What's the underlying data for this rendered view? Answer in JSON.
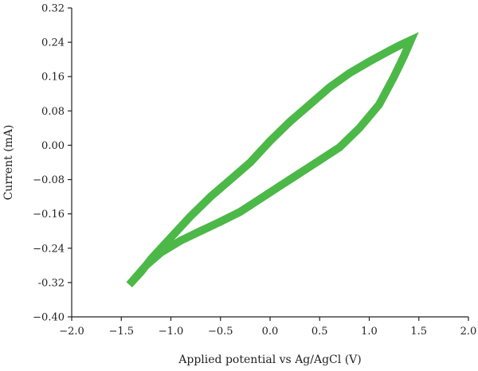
{
  "chart_data": {
    "type": "line",
    "title": "",
    "xlabel": "Applied potential vs Ag/AgCl (V)",
    "ylabel": "Current (mA)",
    "xlim": [
      -2.0,
      2.0
    ],
    "ylim": [
      -0.4,
      0.32
    ],
    "x_ticks": [
      -2.0,
      -1.5,
      -1.0,
      -0.5,
      0.0,
      0.5,
      1.0,
      1.5,
      2.0
    ],
    "x_tick_labels": [
      "−2.0",
      "−1.5",
      "−1.0",
      "−0.5",
      "0.0",
      "0.5",
      "1.0",
      "1.5",
      "2.0"
    ],
    "y_ticks": [
      -0.4,
      -0.32,
      -0.24,
      -0.16,
      -0.08,
      0.0,
      0.08,
      0.16,
      0.24,
      0.32
    ],
    "y_tick_labels": [
      "−0.40",
      "-0.32",
      "−0.24",
      "−0.16",
      "−0.08",
      "0.00",
      "0.08",
      "0.16",
      "0.24",
      "0.32"
    ],
    "grid": false,
    "legend": "none",
    "series": [
      {
        "color": "#4cb848",
        "x": [
          -1.42,
          -1.3,
          -1.2,
          -1.1,
          -1.0,
          -0.8,
          -0.6,
          -0.4,
          -0.2,
          0.0,
          0.2,
          0.4,
          0.6,
          0.8,
          1.0,
          1.2,
          1.3,
          1.42,
          1.35,
          1.25,
          1.1,
          0.9,
          0.7,
          0.5,
          0.3,
          0.1,
          -0.1,
          -0.3,
          -0.5,
          -0.7,
          -0.9,
          -1.1,
          -1.25,
          -1.42
        ],
        "y": [
          -0.325,
          -0.295,
          -0.265,
          -0.24,
          -0.215,
          -0.165,
          -0.12,
          -0.08,
          -0.04,
          0.01,
          0.055,
          0.095,
          0.135,
          0.168,
          0.195,
          0.22,
          0.232,
          0.245,
          0.208,
          0.16,
          0.095,
          0.04,
          -0.005,
          -0.035,
          -0.065,
          -0.095,
          -0.125,
          -0.155,
          -0.178,
          -0.2,
          -0.222,
          -0.25,
          -0.28,
          -0.325
        ]
      }
    ]
  }
}
